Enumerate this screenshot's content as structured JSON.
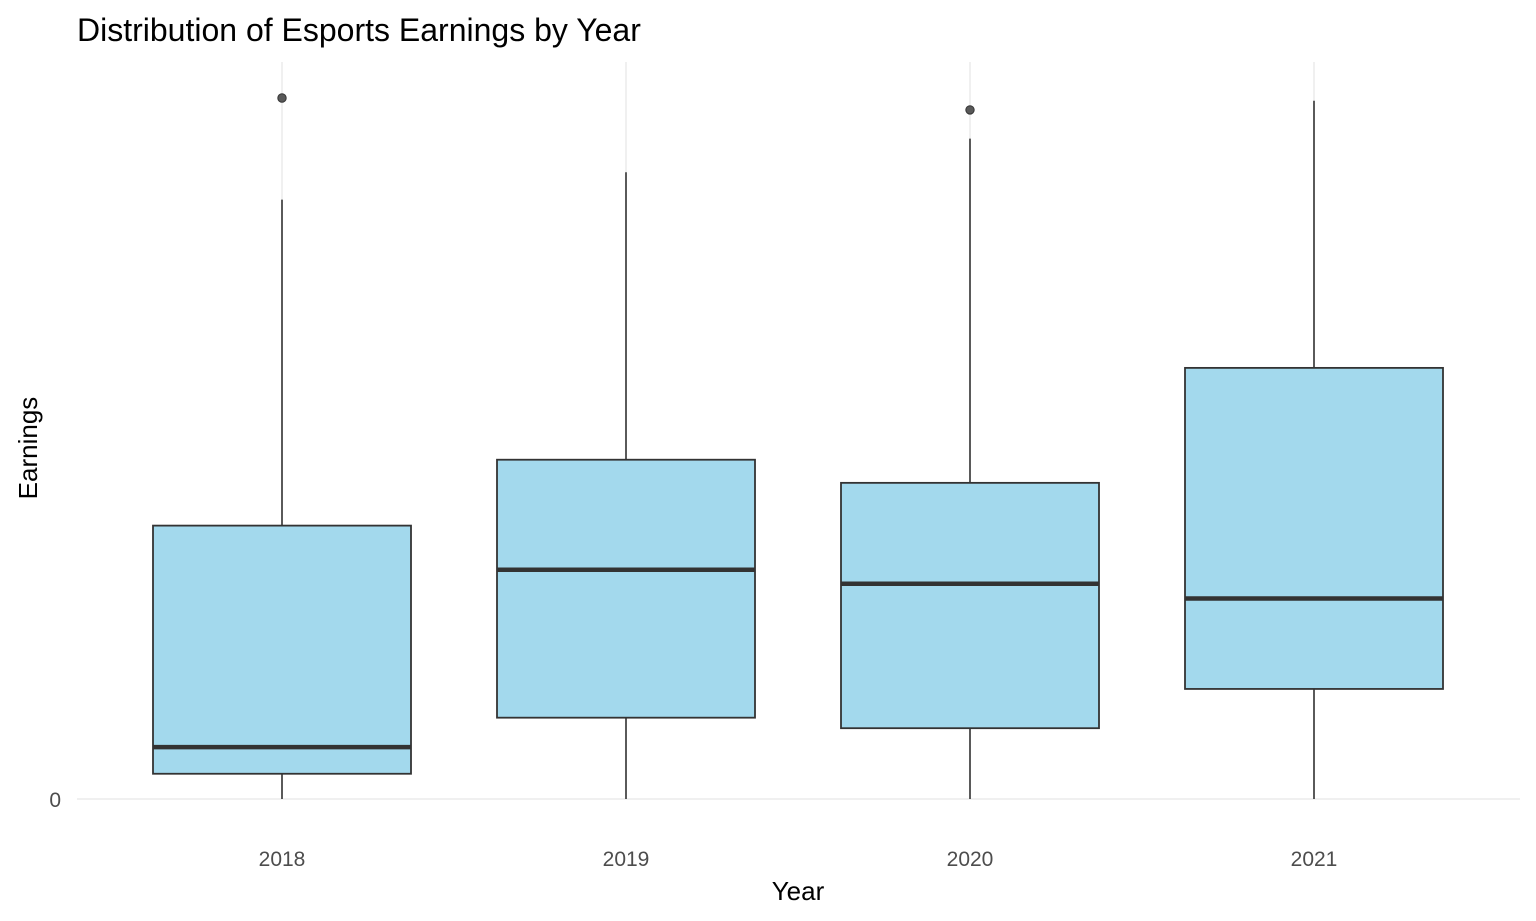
{
  "chart_data": {
    "type": "boxplot",
    "title": "Distribution of Esports Earnings by Year",
    "xlabel": "Year",
    "ylabel": "Earnings",
    "categories": [
      "2018",
      "2019",
      "2020",
      "2021"
    ],
    "y_ticks": [
      {
        "value": 0,
        "label": "0"
      }
    ],
    "ylim": [
      0,
      100
    ],
    "y_scale_note": "relative units (only the 0 tick is printed)",
    "boxes": [
      {
        "category": "2018",
        "min": 0.0,
        "q1": 3.6,
        "median": 7.4,
        "q3": 39.0,
        "max": 85.5,
        "outliers": [
          100.0
        ]
      },
      {
        "category": "2019",
        "min": 0.0,
        "q1": 11.6,
        "median": 32.7,
        "q3": 48.4,
        "max": 89.4,
        "outliers": []
      },
      {
        "category": "2020",
        "min": 0.0,
        "q1": 10.1,
        "median": 30.7,
        "q3": 45.1,
        "max": 94.2,
        "outliers": [
          98.3
        ]
      },
      {
        "category": "2021",
        "min": 0.0,
        "q1": 15.7,
        "median": 28.6,
        "q3": 61.5,
        "max": 99.6,
        "outliers": []
      }
    ],
    "grid": true,
    "legend": "none",
    "colors": {
      "box_fill": "#a3d9ed",
      "box_stroke": "#333333",
      "median_line": "#333333",
      "outlier": "#595959",
      "grid": "#ebebeb",
      "background": "#ffffff"
    }
  }
}
